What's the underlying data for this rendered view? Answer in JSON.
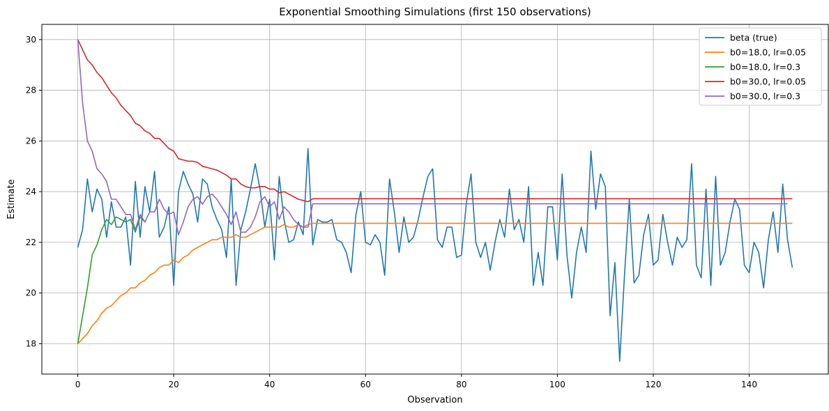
{
  "chart_data": {
    "type": "line",
    "title": "Exponential Smoothing Simulations (first 150 observations)",
    "xlabel": "Observation",
    "ylabel": "Estimate",
    "xlim": [
      -7.5,
      156.5
    ],
    "ylim": [
      16.8,
      30.6
    ],
    "xticks": [
      0,
      20,
      40,
      60,
      80,
      100,
      120,
      140
    ],
    "yticks": [
      18,
      20,
      22,
      24,
      26,
      28,
      30
    ],
    "grid": true,
    "legend_position": "top-right",
    "colors": {
      "blue": "#1f77b4",
      "orange": "#ff7f0e",
      "green": "#2ca02c",
      "red": "#d62728",
      "purple": "#9467bd"
    },
    "series": [
      {
        "name": "beta (true)",
        "color": "#1f77b4",
        "x_start": 0,
        "values": [
          21.8,
          22.5,
          24.5,
          23.2,
          24.1,
          23.7,
          22.2,
          23.6,
          22.6,
          22.6,
          23.0,
          21.1,
          24.4,
          22.2,
          24.2,
          23.2,
          24.8,
          22.2,
          22.6,
          23.4,
          20.3,
          24.0,
          24.8,
          24.3,
          23.9,
          22.8,
          24.5,
          24.3,
          23.4,
          22.9,
          22.5,
          21.4,
          24.5,
          20.3,
          22.5,
          23.2,
          24.1,
          25.1,
          24.1,
          22.6,
          23.7,
          21.3,
          24.6,
          22.9,
          22.0,
          22.1,
          22.8,
          22.3,
          25.7,
          21.9,
          22.9,
          22.8,
          22.8,
          22.9,
          22.1,
          22.0,
          21.6,
          20.8,
          23.1,
          24.0,
          22.0,
          21.9,
          22.3,
          22.0,
          20.7,
          24.5,
          23.2,
          21.6,
          23.0,
          22.0,
          22.2,
          22.9,
          23.8,
          24.6,
          24.9,
          22.1,
          21.8,
          22.6,
          22.6,
          21.4,
          21.5,
          23.5,
          24.7,
          22.0,
          21.4,
          22.0,
          20.9,
          22.0,
          22.9,
          22.2,
          24.1,
          22.5,
          22.9,
          22.0,
          24.2,
          20.3,
          21.6,
          20.3,
          23.4,
          23.4,
          21.3,
          24.7,
          21.5,
          19.8,
          21.6,
          22.6,
          21.6,
          25.6,
          23.3,
          24.7,
          24.2,
          19.1,
          21.2,
          17.3,
          20.7,
          23.7,
          20.4,
          20.7,
          22.3,
          23.1,
          21.1,
          21.3,
          23.1,
          22.0,
          21.1,
          22.2,
          21.8,
          22.1,
          25.1,
          21.1,
          20.6,
          24.1,
          20.3,
          24.6,
          21.1,
          21.6,
          22.8,
          23.7,
          23.3,
          21.1,
          20.8,
          22.0,
          21.6,
          20.2,
          22.1,
          23.2,
          21.6,
          24.3,
          22.1,
          21.0
        ]
      },
      {
        "name": "b0=18.0, lr=0.05",
        "color": "#ff7f0e",
        "x_start": 0,
        "values": [
          18.0,
          18.2,
          18.4,
          18.7,
          18.9,
          19.2,
          19.4,
          19.5,
          19.7,
          19.9,
          20.0,
          20.2,
          20.2,
          20.4,
          20.5,
          20.7,
          20.8,
          21.0,
          21.1,
          21.1,
          21.3,
          21.2,
          21.4,
          21.5,
          21.7,
          21.8,
          21.9,
          22.0,
          22.1,
          22.1,
          22.2,
          22.2,
          22.2,
          22.3,
          22.2,
          22.2,
          22.3,
          22.4,
          22.5,
          22.6,
          22.6,
          22.6,
          22.6,
          22.7,
          22.6,
          22.6,
          22.7,
          22.6,
          22.7,
          22.75,
          22.75,
          22.75,
          22.75,
          22.75,
          22.75,
          22.75,
          22.75,
          22.75,
          22.75,
          22.75,
          22.75,
          22.75,
          22.75,
          22.75,
          22.75,
          22.75,
          22.75,
          22.75,
          22.75,
          22.75,
          22.75,
          22.75,
          22.75,
          22.75,
          22.75,
          22.75,
          22.75,
          22.75,
          22.75,
          22.75,
          22.75,
          22.75,
          22.75,
          22.75,
          22.75,
          22.75,
          22.75,
          22.75,
          22.75,
          22.75,
          22.75,
          22.75,
          22.75,
          22.75,
          22.75,
          22.75,
          22.75,
          22.75,
          22.75,
          22.75,
          22.75,
          22.75,
          22.75,
          22.75,
          22.75,
          22.75,
          22.75,
          22.75,
          22.75,
          22.75,
          22.75,
          22.75,
          22.75,
          22.75,
          22.75,
          22.75,
          22.75,
          22.75,
          22.75,
          22.75,
          22.75,
          22.75,
          22.75,
          22.75,
          22.75,
          22.75,
          22.75,
          22.75,
          22.75,
          22.75,
          22.75,
          22.75,
          22.75,
          22.75,
          22.75,
          22.75,
          22.75,
          22.75,
          22.75,
          22.75,
          22.75,
          22.75,
          22.75,
          22.75,
          22.75,
          22.75,
          22.75,
          22.75,
          22.75,
          22.75
        ]
      },
      {
        "name": "b0=18.0, lr=0.3",
        "color": "#2ca02c",
        "x_start": 0,
        "values": [
          18.0,
          19.1,
          20.2,
          21.5,
          21.9,
          22.5,
          22.9,
          22.7,
          23.0,
          22.9,
          22.8,
          22.9,
          22.4,
          23.0,
          22.8
        ]
      },
      {
        "name": "b0=30.0, lr=0.05",
        "color": "#d62728",
        "x_start": 0,
        "values": [
          30.0,
          29.6,
          29.2,
          29.0,
          28.7,
          28.5,
          28.2,
          27.9,
          27.7,
          27.4,
          27.2,
          27.0,
          26.7,
          26.6,
          26.4,
          26.3,
          26.1,
          26.1,
          25.9,
          25.7,
          25.6,
          25.3,
          25.25,
          25.2,
          25.2,
          25.15,
          25.0,
          24.95,
          24.9,
          24.85,
          24.75,
          24.65,
          24.5,
          24.5,
          24.3,
          24.2,
          24.15,
          24.15,
          24.2,
          24.2,
          24.1,
          24.1,
          23.95,
          24.0,
          23.9,
          23.8,
          23.7,
          23.65,
          23.6,
          23.72,
          23.72,
          23.72,
          23.72,
          23.72,
          23.72,
          23.72,
          23.72,
          23.72,
          23.72,
          23.72,
          23.72,
          23.72,
          23.72,
          23.72,
          23.72,
          23.72,
          23.72,
          23.72,
          23.72,
          23.72,
          23.72,
          23.72,
          23.72,
          23.72,
          23.72,
          23.72,
          23.72,
          23.72,
          23.72,
          23.72,
          23.72,
          23.72,
          23.72,
          23.72,
          23.72,
          23.72,
          23.72,
          23.72,
          23.72,
          23.72,
          23.72,
          23.72,
          23.72,
          23.72,
          23.72,
          23.72,
          23.72,
          23.72,
          23.72,
          23.72,
          23.72,
          23.72,
          23.72,
          23.72,
          23.72,
          23.72,
          23.72,
          23.72,
          23.72,
          23.72,
          23.72,
          23.72,
          23.72,
          23.72,
          23.72,
          23.72,
          23.72,
          23.72,
          23.72,
          23.72,
          23.72,
          23.72,
          23.72,
          23.72,
          23.72,
          23.72,
          23.72,
          23.72,
          23.72,
          23.72,
          23.72,
          23.72,
          23.72,
          23.72,
          23.72,
          23.72,
          23.72,
          23.72,
          23.72,
          23.72,
          23.72,
          23.72,
          23.72,
          23.72,
          23.72,
          23.72,
          23.72,
          23.72,
          23.72,
          23.72
        ]
      },
      {
        "name": "b0=30.0, lr=0.3",
        "color": "#9467bd",
        "x_start": 0,
        "values": [
          30.0,
          27.5,
          26.0,
          25.6,
          24.9,
          24.7,
          24.4,
          23.7,
          23.7,
          23.4,
          23.1,
          23.1,
          22.5,
          23.1,
          22.8,
          23.2,
          23.2,
          23.7,
          23.3,
          23.1,
          23.2,
          22.3,
          22.8,
          23.4,
          23.7,
          23.8,
          23.5,
          23.8,
          23.9,
          23.7,
          23.4,
          23.1,
          22.7,
          23.2,
          22.4,
          22.4,
          22.6,
          23.0,
          23.6,
          23.8,
          23.4,
          23.6,
          22.9,
          23.4,
          23.2,
          22.9,
          22.7,
          22.6,
          22.6,
          23.52,
          23.52,
          23.52,
          23.52,
          23.52,
          23.52,
          23.52,
          23.52,
          23.52,
          23.52,
          23.52,
          23.52,
          23.52,
          23.52,
          23.52,
          23.52,
          23.52,
          23.52,
          23.52,
          23.52,
          23.52,
          23.52,
          23.52,
          23.52,
          23.52,
          23.52,
          23.52,
          23.52,
          23.52,
          23.52,
          23.52,
          23.52,
          23.52,
          23.52,
          23.52,
          23.52,
          23.52,
          23.52,
          23.52,
          23.52,
          23.52,
          23.52,
          23.52,
          23.52,
          23.52,
          23.52,
          23.52,
          23.52,
          23.52,
          23.52,
          23.52,
          23.52,
          23.52,
          23.52,
          23.52,
          23.52,
          23.52,
          23.52,
          23.52,
          23.52,
          23.52,
          23.52,
          23.52,
          23.52,
          23.52,
          23.52,
          23.52,
          23.52,
          23.52,
          23.52,
          23.52,
          23.52,
          23.52,
          23.52,
          23.52,
          23.52,
          23.52,
          23.52,
          23.52,
          23.52,
          23.52,
          23.52,
          23.52,
          23.52,
          23.52,
          23.52,
          23.52,
          23.52,
          23.52,
          23.52,
          23.52,
          23.52,
          23.52,
          23.52,
          23.52,
          23.52,
          23.52,
          23.52,
          23.52,
          23.52
        ]
      }
    ]
  }
}
